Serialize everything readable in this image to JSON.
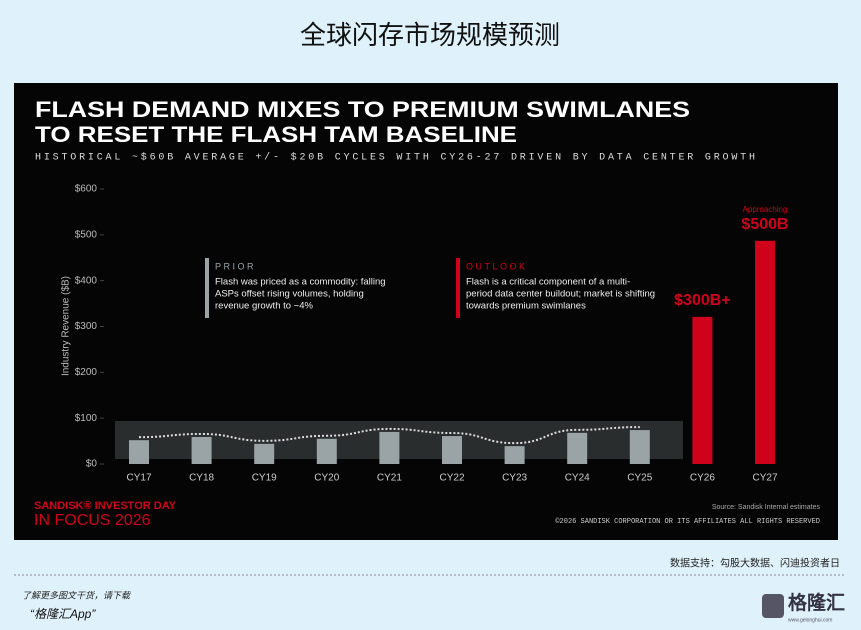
{
  "header": {
    "title": "全球闪存市场规模预测"
  },
  "chart_data": {
    "type": "bar",
    "title": [
      "FLASH DEMAND MIXES TO PREMIUM SWIMLANES",
      "TO RESET THE FLASH TAM BASELINE"
    ],
    "subtitle": "HISTORICAL ~$60B AVERAGE +/- $20B CYCLES WITH CY26-27 DRIVEN BY DATA CENTER GROWTH",
    "y_label": "Industry Revenue ($B)",
    "categories": [
      "CY17",
      "CY18",
      "CY19",
      "CY20",
      "CY21",
      "CY22",
      "CY23",
      "CY24",
      "CY25",
      "CY26",
      "CY27"
    ],
    "values": [
      52,
      59,
      44,
      55,
      70,
      61,
      39,
      68,
      74,
      321,
      487
    ],
    "colors": [
      "#9aa3a6",
      "#9aa3a6",
      "#9aa3a6",
      "#9aa3a6",
      "#9aa3a6",
      "#9aa3a6",
      "#9aa3a6",
      "#9aa3a6",
      "#9aa3a6",
      "#d0021b",
      "#d0021b"
    ],
    "ylim": [
      0,
      600
    ],
    "yticks": [
      {
        "value": 0,
        "label": "$0"
      },
      {
        "value": 100,
        "label": "$100"
      },
      {
        "value": 200,
        "label": "$200"
      },
      {
        "value": 300,
        "label": "$300"
      },
      {
        "value": 400,
        "label": "$400"
      },
      {
        "value": 500,
        "label": "$500"
      },
      {
        "value": 600,
        "label": "$600"
      }
    ],
    "callouts": [
      [
        "$300B+"
      ],
      [
        "Approaching",
        "$500B"
      ]
    ],
    "boxes": [
      {
        "heading": "PRIOR",
        "color": "#9aa3a6",
        "lines": [
          "Flash was priced as a commodity: falling",
          "ASPs offset rising volumes, holding",
          "revenue growth to ~4%"
        ]
      },
      {
        "heading": "OUTLOOK",
        "color": "#d0021b",
        "lines": [
          "Flash is a critical component of a multi-",
          "period data center buildout; market is shifting",
          "towards premium swimlanes"
        ]
      }
    ],
    "source": "Source: Sandisk Internal estimates"
  },
  "slide": {
    "logo": "SANDISK® INVESTOR DAY",
    "event": "IN FOCUS 2026",
    "copyright": "©2026 SANDISK CORPORATION OR ITS AFFILIATES ALL RIGHTS RESERVED"
  },
  "footer": {
    "data_support": "数据支持：勾股大数据、闪迪投资者日",
    "download": "了解更多图文干货，请下载",
    "app": "“格隆汇App”",
    "brand": "格隆汇",
    "site": "www.gelonghui.com"
  }
}
